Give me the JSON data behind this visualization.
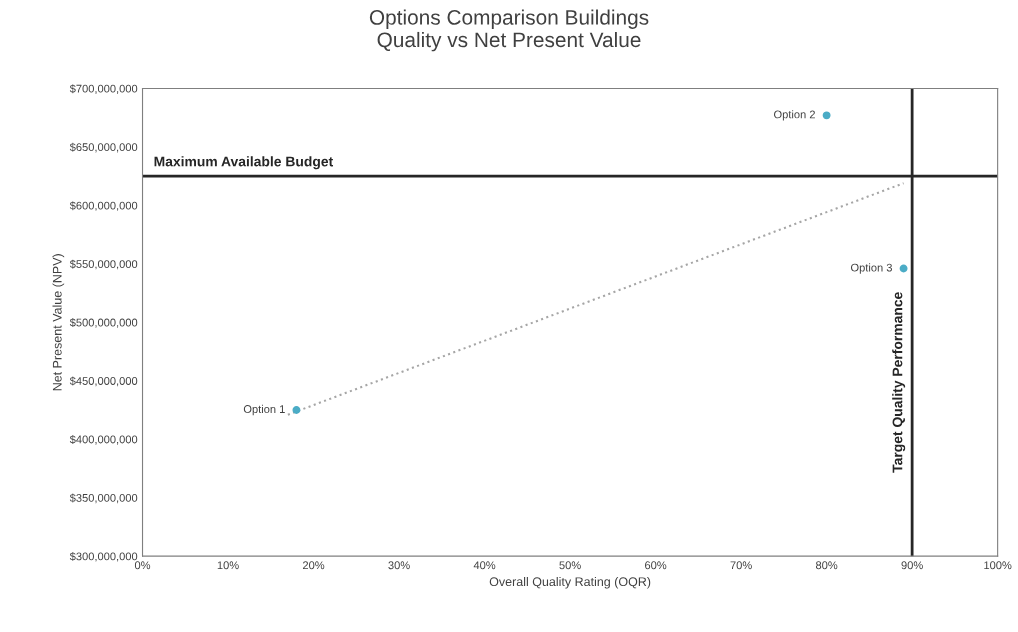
{
  "chart_data": {
    "type": "scatter",
    "title": "Options Comparison Buildings\nQuality vs Net Present Value",
    "xlabel": "Overall Quality Rating (OQR)",
    "ylabel": "Net Present Value (NPV)",
    "series": [
      {
        "color": "#4bacc6",
        "marker": "circle",
        "x": [
          18,
          80,
          89
        ],
        "values": [
          425000000,
          677000000,
          546000000
        ]
      },
      {
        "type": "line",
        "color": "#a6a6a6",
        "line_style": "dotted",
        "x": [
          17,
          89
        ],
        "values": [
          421000000,
          619000000
        ]
      }
    ],
    "annotations": [
      {
        "text": "Option 1",
        "x": 18,
        "y": 425000000
      },
      {
        "text": "Option 2",
        "x": 80,
        "y": 677000000
      },
      {
        "text": "Option 3",
        "x": 89,
        "y": 546000000
      }
    ],
    "ref_lines": [
      {
        "axis": "y",
        "value": 625000000,
        "label": "Maximum Available Budget",
        "color": "#262626"
      },
      {
        "axis": "x",
        "value": 90,
        "label": "Target Quality Performance",
        "color": "#262626"
      }
    ],
    "xlim": [
      0,
      100
    ],
    "xticks": [
      {
        "value": 0,
        "label": "0%"
      },
      {
        "value": 10,
        "label": "10%"
      },
      {
        "value": 20,
        "label": "20%"
      },
      {
        "value": 30,
        "label": "30%"
      },
      {
        "value": 40,
        "label": "40%"
      },
      {
        "value": 50,
        "label": "50%"
      },
      {
        "value": 60,
        "label": "60%"
      },
      {
        "value": 70,
        "label": "70%"
      },
      {
        "value": 80,
        "label": "80%"
      },
      {
        "value": 90,
        "label": "90%"
      },
      {
        "value": 100,
        "label": "100%"
      }
    ],
    "ylim": [
      300000000,
      700000000
    ],
    "yticks": [
      {
        "value": 300000000,
        "label": "$300,000,000"
      },
      {
        "value": 350000000,
        "label": "$350,000,000"
      },
      {
        "value": 400000000,
        "label": "$400,000,000"
      },
      {
        "value": 450000000,
        "label": "$450,000,000"
      },
      {
        "value": 500000000,
        "label": "$500,000,000"
      },
      {
        "value": 550000000,
        "label": "$550,000,000"
      },
      {
        "value": 600000000,
        "label": "$600,000,000"
      },
      {
        "value": 650000000,
        "label": "$650,000,000"
      },
      {
        "value": 700000000,
        "label": "$700,000,000"
      }
    ],
    "grid": false,
    "legend": false
  }
}
